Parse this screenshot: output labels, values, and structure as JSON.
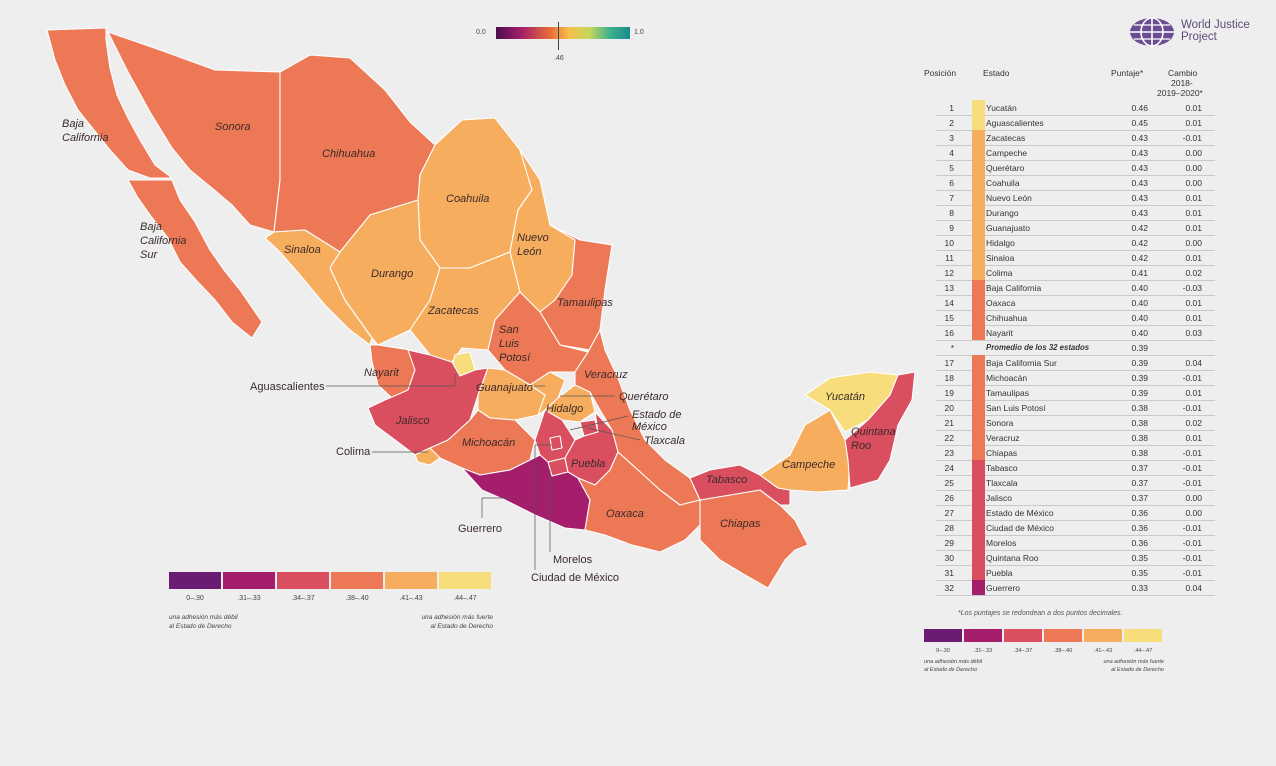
{
  "scale": {
    "min_label": "0.0",
    "max_label": "1.0",
    "marker_label": ".46",
    "marker_value": 0.46
  },
  "logo": {
    "line1": "World Justice",
    "line2": "Project"
  },
  "table": {
    "headers": {
      "pos": "Posición",
      "state": "Estado",
      "score": "Puntaje*",
      "change1": "Cambio",
      "change2": "2018-",
      "change3": "2019–2020*"
    },
    "rows": [
      {
        "pos": "1",
        "state": "Yucatán",
        "score": "0.46",
        "change": "0.01",
        "color": "#f8dd7c"
      },
      {
        "pos": "2",
        "state": "Aguascalientes",
        "score": "0.45",
        "change": "0.01",
        "color": "#f8dd7c"
      },
      {
        "pos": "3",
        "state": "Zacatecas",
        "score": "0.43",
        "change": "-0.01",
        "color": "#f6ad5e"
      },
      {
        "pos": "4",
        "state": "Campeche",
        "score": "0.43",
        "change": "0.00",
        "color": "#f6ad5e"
      },
      {
        "pos": "5",
        "state": "Querétaro",
        "score": "0.43",
        "change": "0.00",
        "color": "#f6ad5e"
      },
      {
        "pos": "6",
        "state": "Coahuila",
        "score": "0.43",
        "change": "0.00",
        "color": "#f6ad5e"
      },
      {
        "pos": "7",
        "state": "Nuevo León",
        "score": "0.43",
        "change": "0.01",
        "color": "#f6ad5e"
      },
      {
        "pos": "8",
        "state": "Durango",
        "score": "0.43",
        "change": "0.01",
        "color": "#f6ad5e"
      },
      {
        "pos": "9",
        "state": "Guanajuato",
        "score": "0.42",
        "change": "0.01",
        "color": "#f6ad5e"
      },
      {
        "pos": "10",
        "state": "Hidalgo",
        "score": "0.42",
        "change": "0.00",
        "color": "#f6ad5e"
      },
      {
        "pos": "11",
        "state": "Sinaloa",
        "score": "0.42",
        "change": "0.01",
        "color": "#f6ad5e"
      },
      {
        "pos": "12",
        "state": "Colima",
        "score": "0.41",
        "change": "0.02",
        "color": "#f6ad5e"
      },
      {
        "pos": "13",
        "state": "Baja California",
        "score": "0.40",
        "change": "-0.03",
        "color": "#ed7855"
      },
      {
        "pos": "14",
        "state": "Oaxaca",
        "score": "0.40",
        "change": "0.01",
        "color": "#ed7855"
      },
      {
        "pos": "15",
        "state": "Chihuahua",
        "score": "0.40",
        "change": "0.01",
        "color": "#ed7855"
      },
      {
        "pos": "16",
        "state": "Nayarit",
        "score": "0.40",
        "change": "0.03",
        "color": "#ed7855"
      },
      {
        "pos": "*",
        "state": "Promedio de los 32 estados",
        "score": "0.39",
        "change": "",
        "color": "",
        "avg": true
      },
      {
        "pos": "17",
        "state": "Baja California Sur",
        "score": "0.39",
        "change": "0.04",
        "color": "#ed7855"
      },
      {
        "pos": "18",
        "state": "Michoacán",
        "score": "0.39",
        "change": "-0.01",
        "color": "#ed7855"
      },
      {
        "pos": "19",
        "state": "Tamaulipas",
        "score": "0.39",
        "change": "0.01",
        "color": "#ed7855"
      },
      {
        "pos": "20",
        "state": "San Luis Potosí",
        "score": "0.38",
        "change": "-0.01",
        "color": "#ed7855"
      },
      {
        "pos": "21",
        "state": "Sonora",
        "score": "0.38",
        "change": "0.02",
        "color": "#ed7855"
      },
      {
        "pos": "22",
        "state": "Veracruz",
        "score": "0.38",
        "change": "0.01",
        "color": "#ed7855"
      },
      {
        "pos": "23",
        "state": "Chiapas",
        "score": "0.38",
        "change": "-0.01",
        "color": "#ed7855"
      },
      {
        "pos": "24",
        "state": "Tabasco",
        "score": "0.37",
        "change": "-0.01",
        "color": "#d94f5f"
      },
      {
        "pos": "25",
        "state": "Tlaxcala",
        "score": "0.37",
        "change": "-0.01",
        "color": "#d94f5f"
      },
      {
        "pos": "26",
        "state": "Jalisco",
        "score": "0.37",
        "change": "0.00",
        "color": "#d94f5f"
      },
      {
        "pos": "27",
        "state": "Estado de México",
        "score": "0.36",
        "change": "0.00",
        "color": "#d94f5f"
      },
      {
        "pos": "28",
        "state": "Ciudad de México",
        "score": "0.36",
        "change": "-0.01",
        "color": "#d94f5f"
      },
      {
        "pos": "29",
        "state": "Morelos",
        "score": "0.36",
        "change": "-0.01",
        "color": "#d94f5f"
      },
      {
        "pos": "30",
        "state": "Quintana Roo",
        "score": "0.35",
        "change": "-0.01",
        "color": "#d94f5f"
      },
      {
        "pos": "31",
        "state": "Puebla",
        "score": "0.35",
        "change": "-0.01",
        "color": "#d94f5f"
      },
      {
        "pos": "32",
        "state": "Guerrero",
        "score": "0.33",
        "change": "0.04",
        "color": "#a51e6c"
      }
    ],
    "note": "*Los puntajes se redondean a dos puntos decimales."
  },
  "legend": {
    "bins": [
      {
        "label": "0–.30",
        "color": "#6a1c72"
      },
      {
        "label": ".31–.33",
        "color": "#a51e6c"
      },
      {
        "label": ".34–.37",
        "color": "#d94f5f"
      },
      {
        "label": ".38–.40",
        "color": "#ed7855"
      },
      {
        "label": ".41–.43",
        "color": "#f6ad5e"
      },
      {
        "label": ".44–.47",
        "color": "#f8dd7c"
      }
    ],
    "weak_line1": "una adhesión más débil",
    "weak_line2": "al Estado de Derecho",
    "strong_line1": "una adhesión más fuerte",
    "strong_line2": "al Estado de Derecho"
  },
  "map_labels": {
    "baja_california_1": "Baja",
    "baja_california_2": "California",
    "bcs_1": "Baja",
    "bcs_2": "California",
    "bcs_3": "Sur",
    "sonora": "Sonora",
    "chihuahua": "Chihuahua",
    "coahuila": "Coahuila",
    "nuevo_leon_1": "Nuevo",
    "nuevo_leon_2": "León",
    "sinaloa": "Sinaloa",
    "durango": "Durango",
    "zacatecas": "Zacatecas",
    "tamaulipas": "Tamaulipas",
    "slp_1": "San",
    "slp_2": "Luis",
    "slp_3": "Potosí",
    "nayarit": "Nayarit",
    "aguascalientes": "Aguascalientes",
    "guanajuato": "Guanajuato",
    "veracruz": "Veracruz",
    "queretaro": "Querétaro",
    "hidalgo": "Hidalgo",
    "edomex_1": "Estado de",
    "edomex_2": "México",
    "tlaxcala": "Tlaxcala",
    "jalisco": "Jalisco",
    "michoacan": "Michoacán",
    "colima": "Colima",
    "puebla": "Puebla",
    "guerrero": "Guerrero",
    "oaxaca": "Oaxaca",
    "morelos": "Morelos",
    "cdmx": "Ciudad de México",
    "tabasco": "Tabasco",
    "chiapas": "Chiapas",
    "campeche": "Campeche",
    "yucatan": "Yucatán",
    "qroo_1": "Quintana",
    "qroo_2": "Roo"
  },
  "state_colors": {
    "baja_california": "#ed7855",
    "baja_california_sur": "#ed7855",
    "sonora": "#ed7855",
    "chihuahua": "#ed7855",
    "coahuila": "#f6ad5e",
    "nuevo_leon": "#f6ad5e",
    "tamaulipas": "#ed7855",
    "sinaloa": "#f6ad5e",
    "durango": "#f6ad5e",
    "zacatecas": "#f6ad5e",
    "san_luis_potosi": "#ed7855",
    "nayarit": "#ed7855",
    "aguascalientes": "#f8dd7c",
    "jalisco": "#d94f5f",
    "guanajuato": "#f6ad5e",
    "queretaro": "#f6ad5e",
    "hidalgo": "#f6ad5e",
    "veracruz": "#ed7855",
    "michoacan": "#ed7855",
    "colima": "#f6ad5e",
    "estado_de_mexico": "#d94f5f",
    "ciudad_de_mexico": "#d94f5f",
    "morelos": "#d94f5f",
    "tlaxcala": "#d94f5f",
    "puebla": "#d94f5f",
    "guerrero": "#a51e6c",
    "oaxaca": "#ed7855",
    "chiapas": "#ed7855",
    "tabasco": "#d94f5f",
    "campeche": "#f6ad5e",
    "yucatan": "#f8dd7c",
    "quintana_roo": "#d94f5f"
  }
}
